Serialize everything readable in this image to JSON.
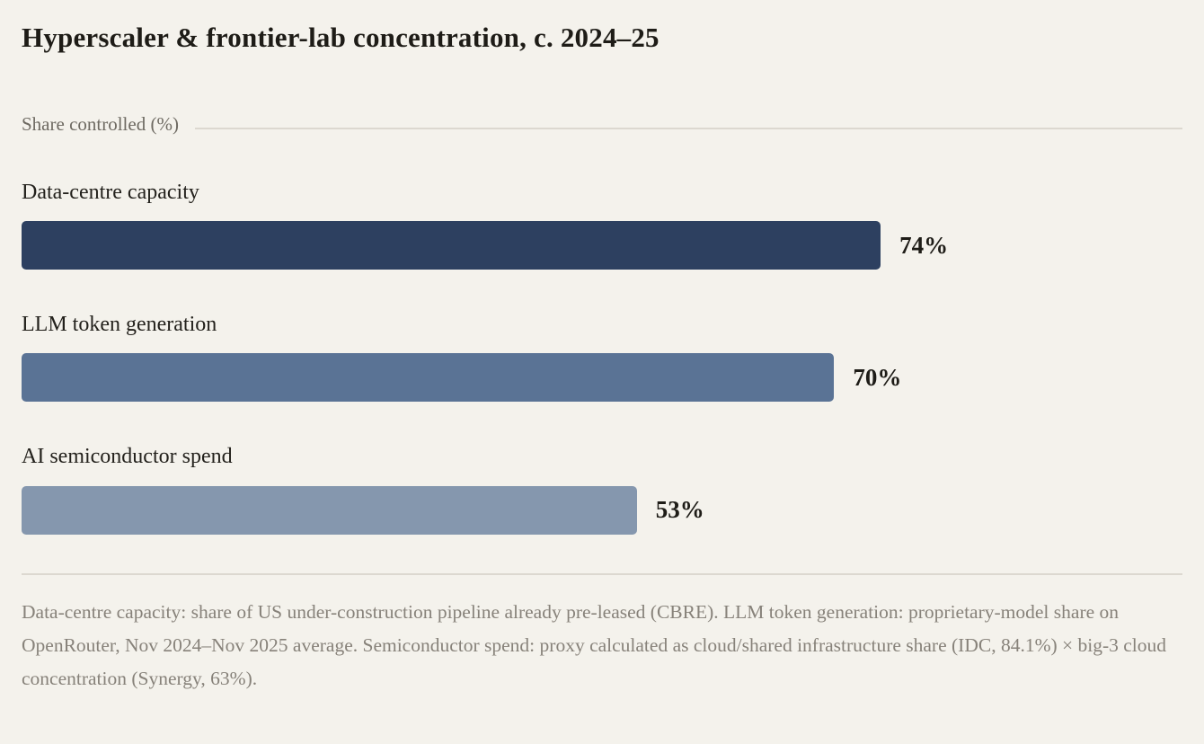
{
  "page": {
    "title": "Hyperscaler & frontier-lab concentration, c. 2024–25",
    "axis_label": "Share controlled (%)",
    "footnote": "Data-centre capacity: share of US under-construction pipeline already pre-leased (CBRE). LLM token generation: proprietary-model share on OpenRouter, Nov 2024–Nov 2025 average. Semiconductor spend: proxy calculated as cloud/shared infrastructure share (IDC, 84.1%) × big-3 cloud concentration (Synergy, 63%)."
  },
  "colors": {
    "background": "#f4f2ec",
    "rule": "#dcd8d0",
    "title_text": "#1e1c17",
    "label_text": "#23211c",
    "axis_text": "#6e6a62",
    "footnote_text": "#87827a"
  },
  "chart_data": {
    "type": "bar",
    "orientation": "horizontal",
    "title": "Hyperscaler & frontier-lab concentration, c. 2024–25",
    "xlabel": "Share controlled (%)",
    "xlim": [
      0,
      100
    ],
    "grid": false,
    "legend": false,
    "categories": [
      "Data-centre capacity",
      "LLM token generation",
      "AI semiconductor spend"
    ],
    "values": [
      74,
      70,
      53
    ],
    "value_labels": [
      "74%",
      "70%",
      "53%"
    ],
    "bar_colors": [
      "#2d4060",
      "#5a7395",
      "#8597ae"
    ]
  }
}
